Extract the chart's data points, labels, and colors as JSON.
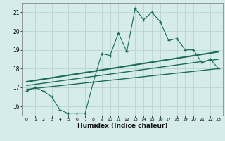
{
  "xlabel": "Humidex (Indice chaleur)",
  "bg_color": "#d5ecea",
  "grid_color": "#b8d4d2",
  "line_color": "#1a6b5a",
  "xlim": [
    -0.5,
    23.5
  ],
  "ylim": [
    15.5,
    21.5
  ],
  "xticks": [
    0,
    1,
    2,
    3,
    4,
    5,
    6,
    7,
    8,
    9,
    10,
    11,
    12,
    13,
    14,
    15,
    16,
    17,
    18,
    19,
    20,
    21,
    22,
    23
  ],
  "yticks": [
    16,
    17,
    18,
    19,
    20,
    21
  ],
  "main_series": [
    [
      0,
      16.8
    ],
    [
      1,
      17.0
    ],
    [
      2,
      16.8
    ],
    [
      3,
      16.5
    ],
    [
      4,
      15.8
    ],
    [
      5,
      15.6
    ],
    [
      6,
      15.6
    ],
    [
      7,
      15.6
    ],
    [
      8,
      17.3
    ],
    [
      9,
      18.8
    ],
    [
      10,
      18.7
    ],
    [
      11,
      19.9
    ],
    [
      12,
      18.9
    ],
    [
      13,
      21.2
    ],
    [
      14,
      20.6
    ],
    [
      15,
      21.0
    ],
    [
      16,
      20.5
    ],
    [
      17,
      19.5
    ],
    [
      18,
      19.6
    ],
    [
      19,
      19.0
    ],
    [
      20,
      19.0
    ],
    [
      21,
      18.3
    ],
    [
      22,
      18.5
    ],
    [
      23,
      18.0
    ]
  ],
  "band_lines": [
    {
      "x": [
        0,
        23
      ],
      "y": [
        16.9,
        18.0
      ],
      "lw": 1.0
    },
    {
      "x": [
        0,
        23
      ],
      "y": [
        17.1,
        18.5
      ],
      "lw": 1.0
    },
    {
      "x": [
        0,
        23
      ],
      "y": [
        17.3,
        18.9
      ],
      "lw": 1.5
    }
  ]
}
